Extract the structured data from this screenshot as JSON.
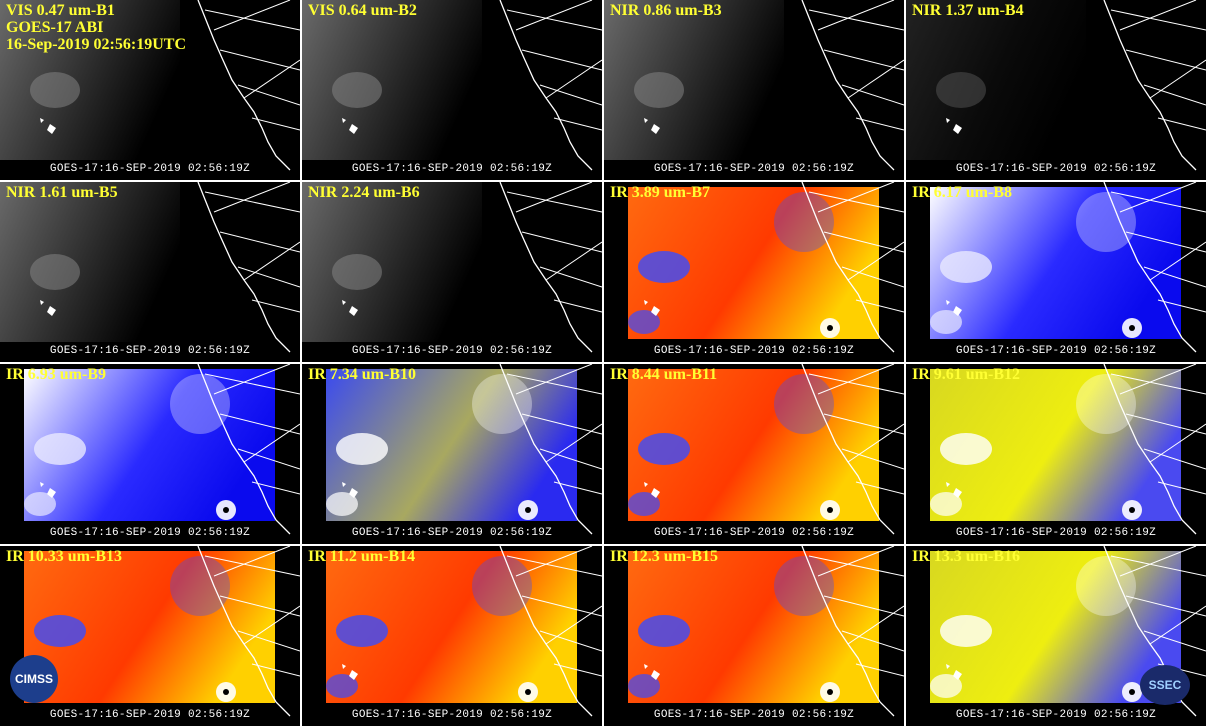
{
  "panels": [
    {
      "label": "VIS 0.47 um-B1",
      "lines": [
        "GOES-17 ABI",
        "16-Sep-2019 02:56:19UTC"
      ],
      "footer": "GOES-17:16-SEP-2019 02:56:19Z"
    },
    {
      "label": "VIS 0.64 um-B2",
      "footer": "GOES-17:16-SEP-2019 02:56:19Z"
    },
    {
      "label": "NIR 0.86 um-B3",
      "footer": "GOES-17:16-SEP-2019 02:56:19Z"
    },
    {
      "label": "NIR 1.37 um-B4",
      "footer": "GOES-17:16-SEP-2019 02:56:19Z"
    },
    {
      "label": "NIR 1.61 um-B5",
      "footer": "GOES-17:16-SEP-2019 02:56:19Z"
    },
    {
      "label": "NIR 2.24 um-B6",
      "footer": "GOES-17:16-SEP-2019 02:56:19Z"
    },
    {
      "label": "IR 3.89 um-B7",
      "footer": "GOES-17:16-SEP-2019 02:56:19Z"
    },
    {
      "label": "IR 6.17 um-B8",
      "footer": "GOES-17:16-SEP-2019 02:56:19Z"
    },
    {
      "label": "IR 6.93 um-B9",
      "footer": "GOES-17:16-SEP-2019 02:56:19Z"
    },
    {
      "label": "IR 7.34 um-B10",
      "footer": "GOES-17:16-SEP-2019 02:56:19Z"
    },
    {
      "label": "IR 8.44 um-B11",
      "footer": "GOES-17:16-SEP-2019 02:56:19Z"
    },
    {
      "label": "IR 9.61 um-B12",
      "footer": "GOES-17:16-SEP-2019 02:56:19Z"
    },
    {
      "label": "IR 10.33 um-B13",
      "footer": "GOES-17:16-SEP-2019 02:56:19Z"
    },
    {
      "label": "IR 11.2 um-B14",
      "footer": "GOES-17:16-SEP-2019 02:56:19Z"
    },
    {
      "label": "IR 12.3 um-B15",
      "footer": "GOES-17:16-SEP-2019 02:56:19Z"
    },
    {
      "label": "IR 13.3 um-B16",
      "footer": "GOES-17:16-SEP-2019 02:56:19Z"
    }
  ],
  "logos": [
    "CIMSS",
    "SSEC"
  ]
}
